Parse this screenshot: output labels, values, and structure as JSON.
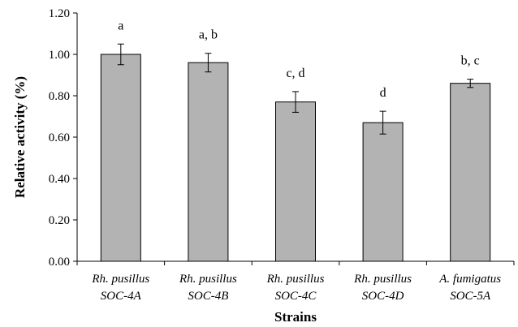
{
  "chart_data": {
    "type": "bar",
    "categories": [
      [
        "Rh. pusillus",
        "SOC-4A"
      ],
      [
        "Rh. pusillus",
        "SOC-4B"
      ],
      [
        "Rh. pusillus",
        "SOC-4C"
      ],
      [
        "Rh. pusillus",
        "SOC-4D"
      ],
      [
        "A. fumigatus",
        "SOC-5A"
      ]
    ],
    "values": [
      1.0,
      0.96,
      0.77,
      0.67,
      0.86
    ],
    "errors": [
      0.05,
      0.045,
      0.05,
      0.055,
      0.02
    ],
    "significance": [
      "a",
      "a, b",
      "c, d",
      "d",
      "b, c"
    ],
    "xlabel": "Strains",
    "ylabel": "Relative activity (%)",
    "ylim": [
      0,
      1.2
    ],
    "yticks": [
      "0.00",
      "0.20",
      "0.40",
      "0.60",
      "0.80",
      "1.00",
      "1.20"
    ],
    "bar_color": "#b3b3b3",
    "grid": false,
    "legend": "none"
  }
}
